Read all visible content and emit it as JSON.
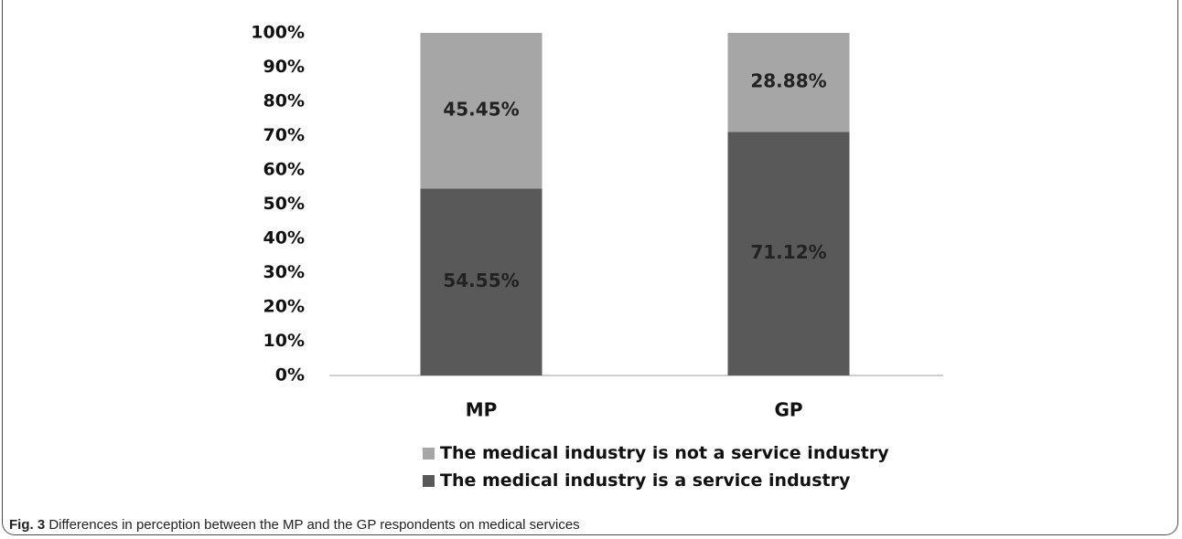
{
  "chart_data": {
    "type": "bar",
    "stacked": true,
    "categories": [
      "MP",
      "GP"
    ],
    "series": [
      {
        "name": "The medical industry is a service industry",
        "values": [
          54.55,
          71.12
        ],
        "labels": [
          "54.55%",
          "71.12%"
        ],
        "color": "#595959"
      },
      {
        "name": "The medical industry is not a service industry",
        "values": [
          45.45,
          28.88
        ],
        "labels": [
          "45.45%",
          "28.88%"
        ],
        "color": "#a6a6a6"
      }
    ],
    "y_ticks": [
      "0%",
      "10%",
      "20%",
      "30%",
      "40%",
      "50%",
      "60%",
      "70%",
      "80%",
      "90%",
      "100%"
    ],
    "ylim": [
      0,
      100
    ],
    "grid": false,
    "legend_position": "bottom",
    "legend_order": [
      1,
      0
    ]
  },
  "caption": {
    "label": "Fig. 3",
    "text": " Differences in perception between the MP and the GP respondents on medical services"
  }
}
